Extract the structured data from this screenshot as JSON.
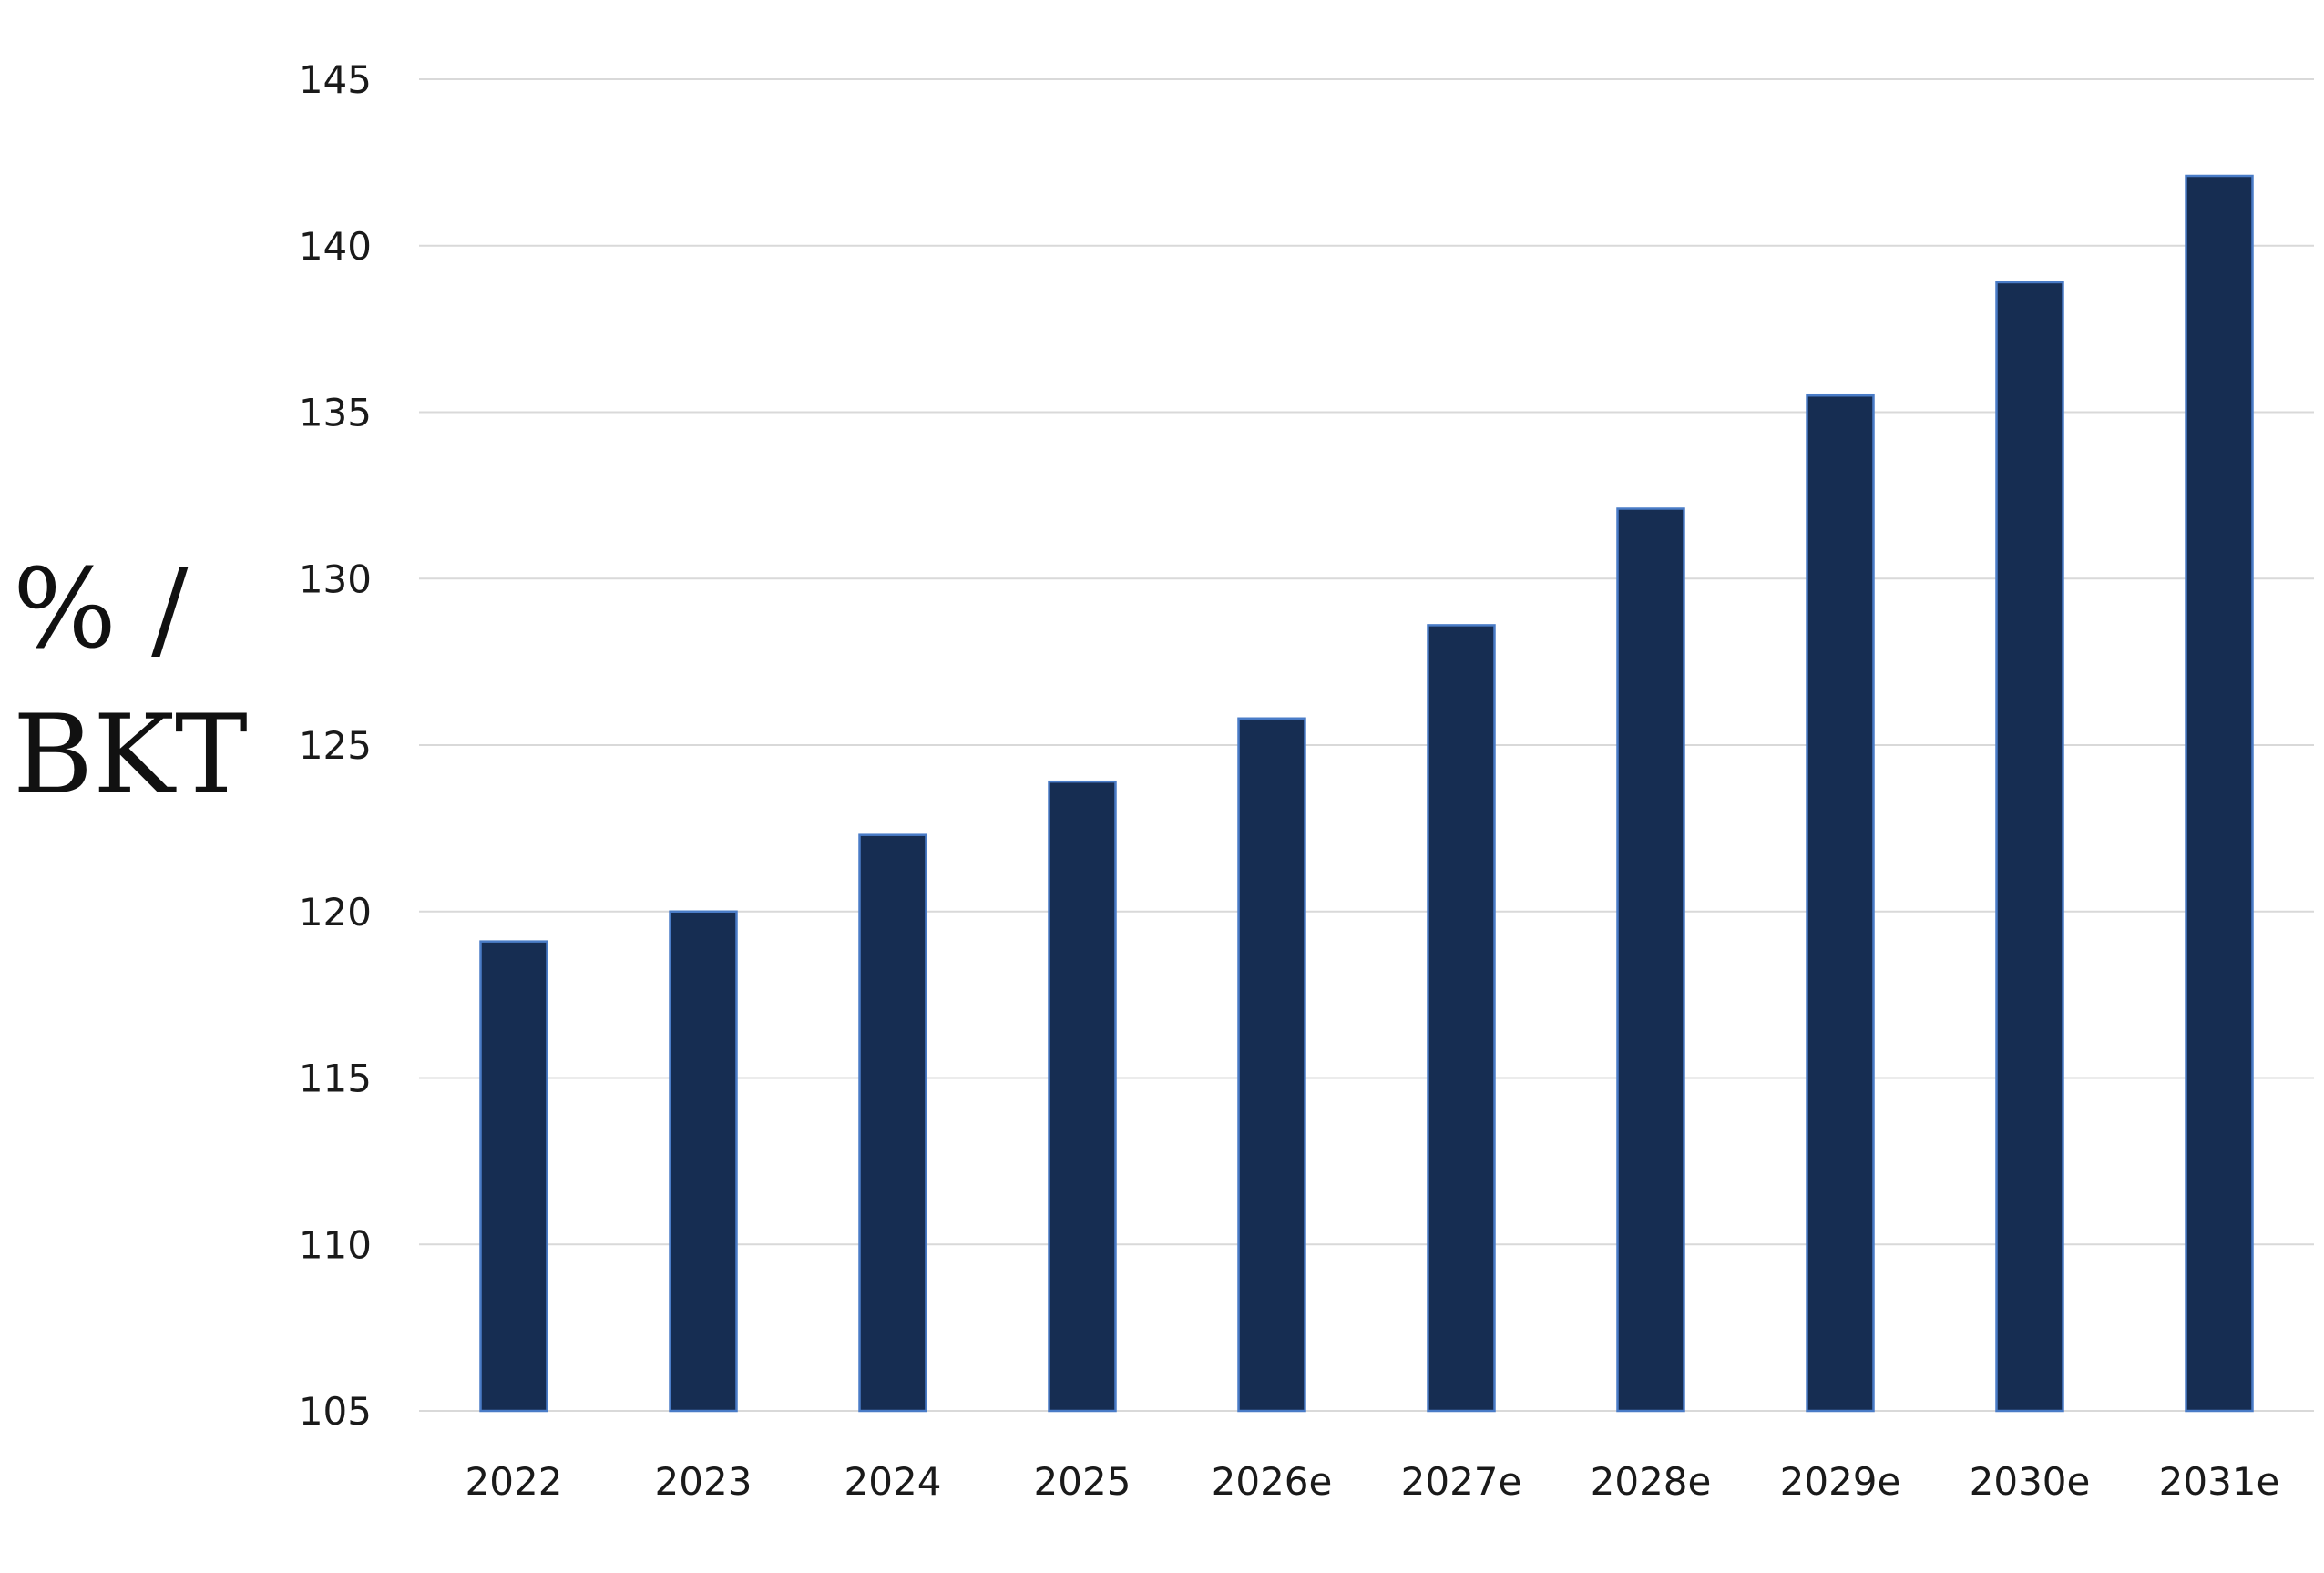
{
  "chart_data": {
    "type": "bar",
    "title": "",
    "xlabel": "",
    "ylabel": "% / BKT",
    "categories": [
      "2022",
      "2023",
      "2024",
      "2025",
      "2026e",
      "2027e",
      "2028e",
      "2029e",
      "2030e",
      "2031e"
    ],
    "values": [
      119.1,
      120.0,
      122.3,
      123.9,
      125.8,
      128.6,
      132.1,
      135.5,
      138.9,
      142.1
    ],
    "ylim": [
      105,
      145
    ],
    "yticks": [
      105,
      110,
      115,
      120,
      125,
      130,
      135,
      140,
      145
    ],
    "grid": true,
    "legend": "none",
    "colors": {
      "bar_fill": "#162d52",
      "bar_stroke": "#4a7cc7",
      "grid": "#d9d9d9"
    }
  }
}
